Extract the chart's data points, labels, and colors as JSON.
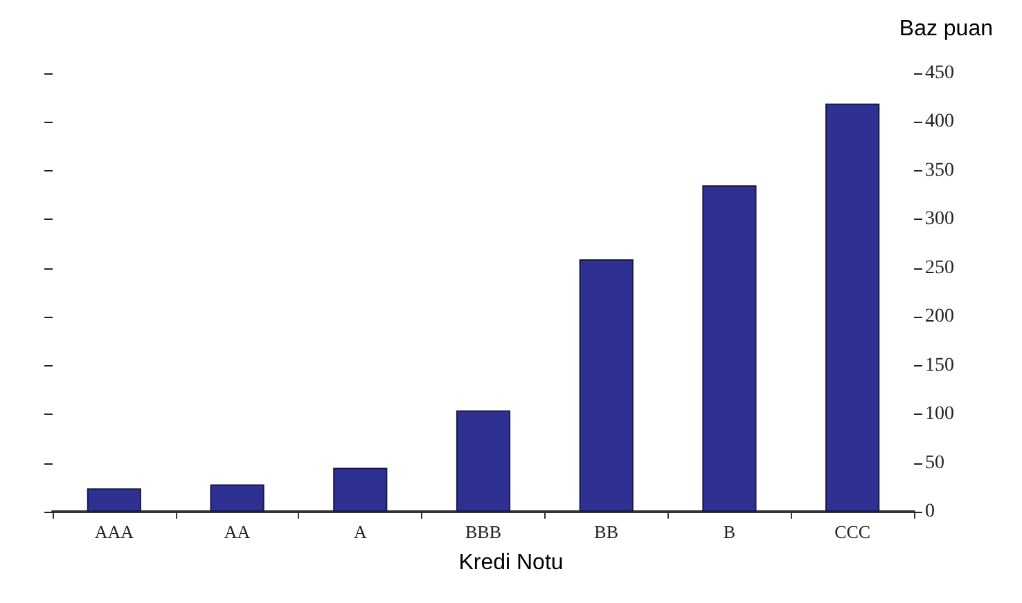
{
  "chart_data": {
    "type": "bar",
    "ylabel": "Baz puan",
    "xlabel": "Kredi Notu",
    "categories": [
      "AAA",
      "AA",
      "A",
      "BBB",
      "BB",
      "B",
      "CCC"
    ],
    "values": [
      24,
      28,
      45,
      104,
      259,
      335,
      419
    ],
    "color": "#2e3192",
    "ylim": [
      0,
      450
    ],
    "yticks": [
      0,
      50,
      100,
      150,
      200,
      250,
      300,
      350,
      400,
      450
    ],
    "grid": false
  }
}
